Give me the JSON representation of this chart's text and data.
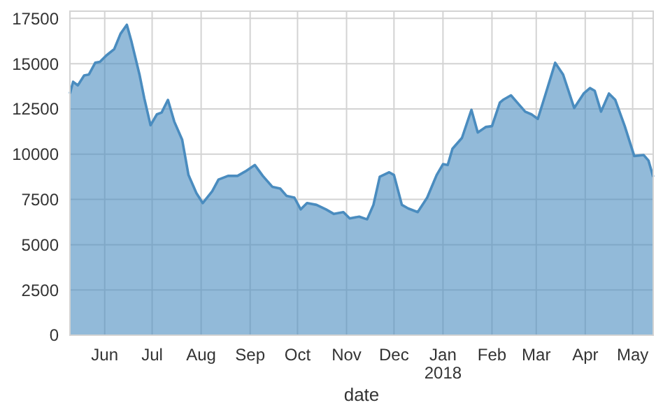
{
  "chart_data": {
    "type": "area",
    "xlabel": "date",
    "x": [
      "2017-05-10",
      "2017-05-12",
      "2017-05-15",
      "2017-05-19",
      "2017-05-22",
      "2017-05-26",
      "2017-05-29",
      "2017-06-02",
      "2017-06-07",
      "2017-06-11",
      "2017-06-15",
      "2017-06-18",
      "2017-06-23",
      "2017-06-26",
      "2017-06-30",
      "2017-07-04",
      "2017-07-07",
      "2017-07-11",
      "2017-07-15",
      "2017-07-20",
      "2017-07-24",
      "2017-07-29",
      "2017-08-02",
      "2017-08-08",
      "2017-08-12",
      "2017-08-18",
      "2017-08-24",
      "2017-08-29",
      "2017-09-04",
      "2017-09-09",
      "2017-09-15",
      "2017-09-20",
      "2017-09-24",
      "2017-09-29",
      "2017-10-03",
      "2017-10-07",
      "2017-10-13",
      "2017-10-19",
      "2017-10-24",
      "2017-10-30",
      "2017-11-03",
      "2017-11-09",
      "2017-11-14",
      "2017-11-18",
      "2017-11-22",
      "2017-11-28",
      "2017-12-01",
      "2017-12-06",
      "2017-12-10",
      "2017-12-16",
      "2017-12-22",
      "2017-12-28",
      "2018-01-01",
      "2018-01-04",
      "2018-01-07",
      "2018-01-13",
      "2018-01-19",
      "2018-01-23",
      "2018-01-28",
      "2018-02-01",
      "2018-02-06",
      "2018-02-08",
      "2018-02-13",
      "2018-02-17",
      "2018-02-22",
      "2018-02-26",
      "2018-03-02",
      "2018-03-07",
      "2018-03-13",
      "2018-03-18",
      "2018-03-25",
      "2018-03-31",
      "2018-04-04",
      "2018-04-07",
      "2018-04-11",
      "2018-04-16",
      "2018-04-20",
      "2018-04-26",
      "2018-05-02",
      "2018-05-08",
      "2018-05-11",
      "2018-05-14"
    ],
    "series": [
      {
        "color": "#4a8cbf",
        "values": [
          13350,
          14000,
          13800,
          14350,
          14400,
          15050,
          15100,
          15450,
          15800,
          16650,
          17150,
          16200,
          14400,
          13100,
          11600,
          12200,
          12300,
          13000,
          11800,
          10800,
          8850,
          7850,
          7300,
          7950,
          8600,
          8800,
          8800,
          9050,
          9400,
          8800,
          8200,
          8100,
          7700,
          7600,
          6950,
          7300,
          7200,
          6950,
          6700,
          6800,
          6450,
          6550,
          6400,
          7200,
          8750,
          9000,
          8850,
          7200,
          7000,
          6800,
          7600,
          8850,
          9450,
          9400,
          10300,
          10900,
          12450,
          11200,
          11500,
          11550,
          12850,
          13000,
          13250,
          12850,
          12350,
          12200,
          11950,
          13350,
          15050,
          14400,
          12550,
          13350,
          13650,
          13500,
          12350,
          13350,
          13000,
          11550,
          9900,
          9950,
          9650,
          8750
        ]
      }
    ],
    "xlim": [
      "2017-05-10",
      "2018-05-14"
    ],
    "xticks": [
      {
        "value": "2017-06-01",
        "label": "Jun"
      },
      {
        "value": "2017-07-01",
        "label": "Jul"
      },
      {
        "value": "2017-08-01",
        "label": "Aug"
      },
      {
        "value": "2017-09-01",
        "label": "Sep"
      },
      {
        "value": "2017-10-01",
        "label": "Oct"
      },
      {
        "value": "2017-11-01",
        "label": "Nov"
      },
      {
        "value": "2017-12-01",
        "label": "Dec"
      },
      {
        "value": "2018-01-01",
        "label": "Jan\n2018"
      },
      {
        "value": "2018-02-01",
        "label": "Feb"
      },
      {
        "value": "2018-03-01",
        "label": "Mar"
      },
      {
        "value": "2018-04-01",
        "label": "Apr"
      },
      {
        "value": "2018-05-01",
        "label": "May"
      }
    ],
    "ylim": [
      0,
      17900
    ],
    "yticks": [
      0,
      2500,
      5000,
      7500,
      10000,
      12500,
      15000,
      17500
    ],
    "grid": true
  }
}
